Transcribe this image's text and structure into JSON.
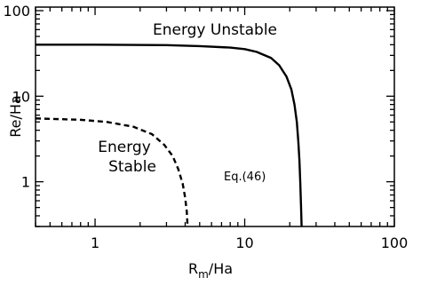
{
  "chart_data": {
    "type": "line",
    "title": "",
    "xlabel": "R",
    "xlabel_sub": "m",
    "xlabel_suffix": "/Ha",
    "ylabel": "Re/Ha",
    "xscale": "log",
    "yscale": "log",
    "xlim": [
      0.4,
      100
    ],
    "ylim": [
      0.3,
      110
    ],
    "xticks": [
      1,
      10,
      100
    ],
    "xtick_labels": [
      "1",
      "10",
      "100"
    ],
    "yticks": [
      1,
      10,
      100
    ],
    "ytick_labels": [
      "1",
      "10",
      "100"
    ],
    "grid": false,
    "series": [
      {
        "style": "solid",
        "x": [
          0.4,
          1,
          3,
          5,
          8,
          10,
          12,
          15,
          17,
          19,
          20.5,
          21.5,
          22.3,
          22.8,
          23.2,
          23.5,
          23.8,
          24.0
        ],
        "y": [
          40,
          40,
          39.5,
          38.5,
          37,
          35.5,
          33,
          28,
          23,
          17,
          12,
          8,
          5,
          3,
          1.8,
          1.0,
          0.5,
          0.3
        ]
      },
      {
        "style": "dashed",
        "x": [
          0.4,
          0.8,
          1.2,
          1.8,
          2.4,
          2.9,
          3.3,
          3.6,
          3.85,
          4.0,
          4.1,
          4.15
        ],
        "y": [
          5.5,
          5.3,
          5.0,
          4.4,
          3.6,
          2.7,
          2.0,
          1.4,
          0.95,
          0.65,
          0.45,
          0.3
        ]
      }
    ],
    "annotations": {
      "energy_unstable": "Energy  Unstable",
      "energy_stable_line1": "Energy",
      "energy_stable_line2": "Stable",
      "equation_ref": "Eq.(46)"
    }
  }
}
